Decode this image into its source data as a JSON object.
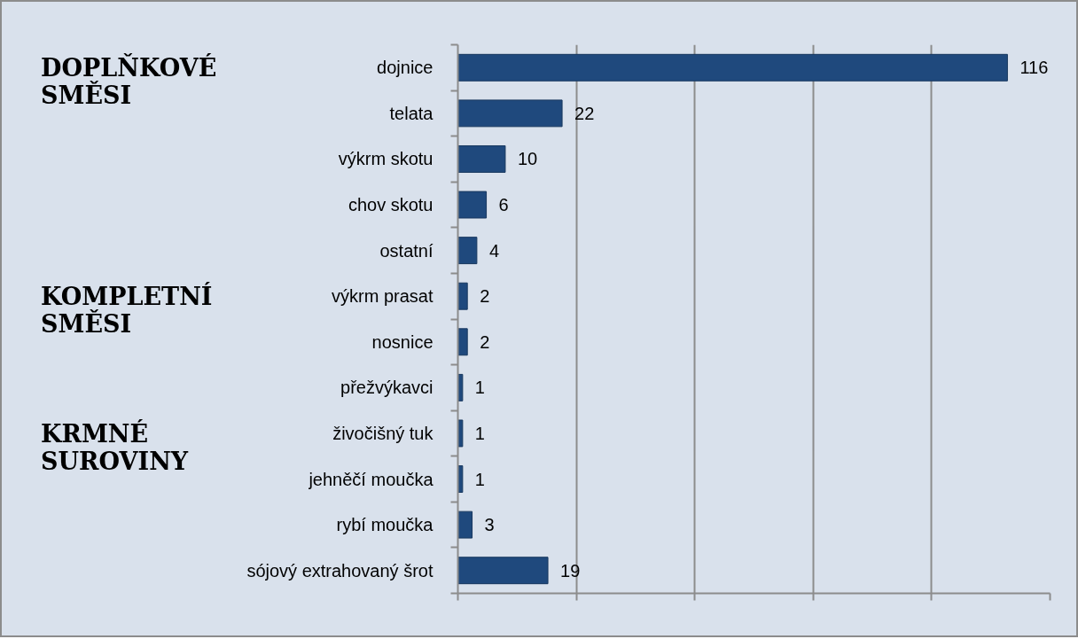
{
  "chart_data": {
    "type": "bar",
    "orientation": "horizontal",
    "categories": [
      "dojnice",
      "telata",
      "výkrm skotu",
      "chov skotu",
      "ostatní",
      "výkrm prasat",
      "nosnice",
      "přežvýkavci",
      "živočišný tuk",
      "jehněčí moučka",
      "rybí moučka",
      "sójový extrahovaný šrot"
    ],
    "values": [
      116,
      22,
      10,
      6,
      4,
      2,
      2,
      1,
      1,
      1,
      3,
      19
    ],
    "color": "#1f497d",
    "xlim": [
      0,
      125
    ],
    "xticks": [
      {
        "value": 0,
        "label": null
      },
      {
        "value": 25,
        "label": null
      },
      {
        "value": 50,
        "label": null
      },
      {
        "value": 75,
        "label": null
      },
      {
        "value": 100,
        "label": null
      },
      {
        "value": 125,
        "label": null
      }
    ],
    "tick_labels": "y",
    "grid": "x",
    "data_labels": true,
    "annotations": [
      "DOPLŇKOVÉ SMĚSI",
      "KOMPLETNÍ SMĚSI",
      "KRMNÉ SUROVINY"
    ]
  }
}
